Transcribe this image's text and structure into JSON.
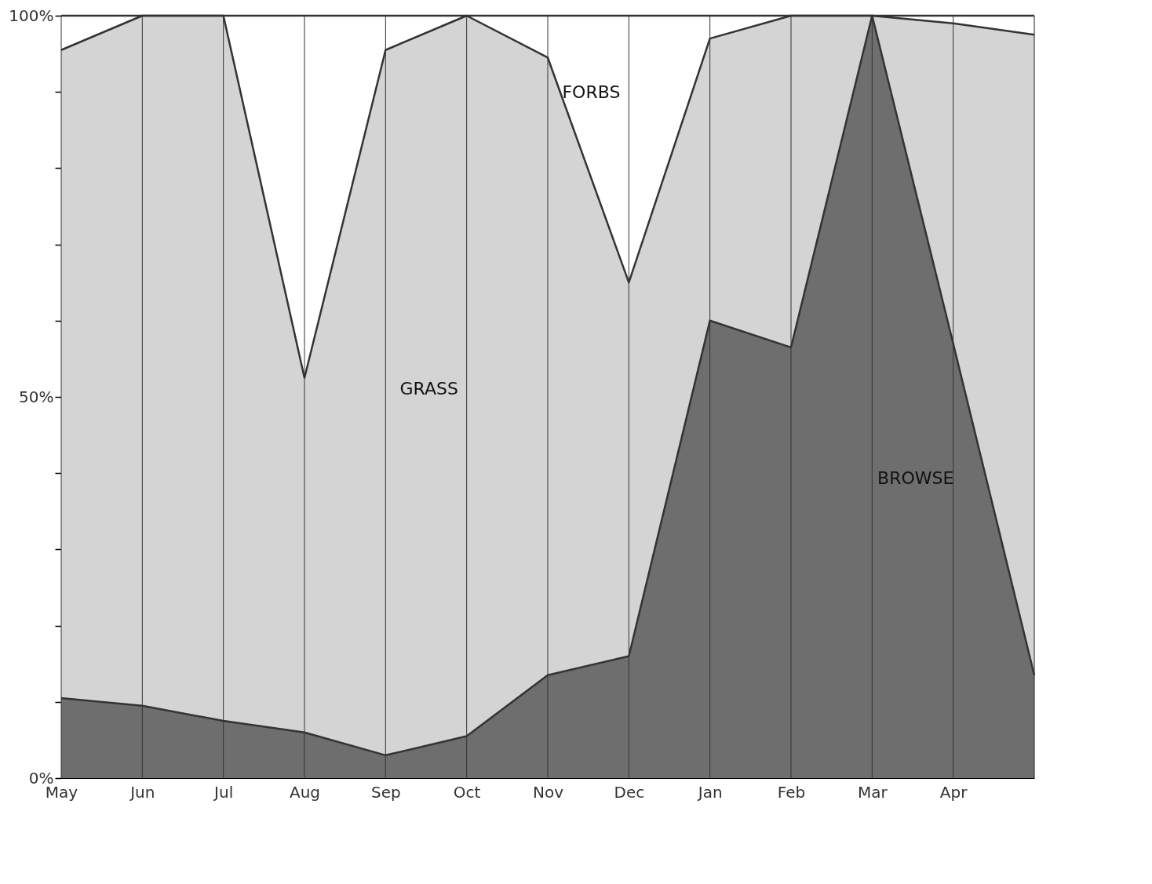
{
  "chart_data": {
    "type": "area",
    "stacked": true,
    "categories": [
      "May",
      "Jun",
      "Jul",
      "Aug",
      "Sep",
      "Oct",
      "Nov",
      "Dec",
      "Jan",
      "Feb",
      "Mar",
      "Apr",
      null
    ],
    "ylim": [
      0,
      100
    ],
    "yticks": [
      {
        "value": 0,
        "label": "0%"
      },
      {
        "value": 10,
        "label": null
      },
      {
        "value": 20,
        "label": null
      },
      {
        "value": 30,
        "label": null
      },
      {
        "value": 40,
        "label": null
      },
      {
        "value": 50,
        "label": "50%"
      },
      {
        "value": 60,
        "label": null
      },
      {
        "value": 70,
        "label": null
      },
      {
        "value": 80,
        "label": null
      },
      {
        "value": 90,
        "label": null
      },
      {
        "value": 100,
        "label": "100%"
      }
    ],
    "grid": "x",
    "legend": false,
    "series": [
      {
        "name": "BROWSE",
        "color": "#6e6e6e",
        "values": [
          10.5,
          9.5,
          7.5,
          6,
          3,
          5.5,
          13.5,
          16,
          60,
          56.5,
          100,
          57,
          13.5
        ]
      },
      {
        "name": "GRASS",
        "color": "#d4d4d4",
        "values": [
          85,
          90.5,
          92.5,
          46.5,
          92.5,
          94.5,
          81,
          49,
          37,
          43.5,
          0,
          42,
          84
        ]
      },
      {
        "name": "FORBS",
        "color": "#ffffff",
        "values": [
          4.5,
          0,
          0,
          47.5,
          4.5,
          0,
          5.5,
          35,
          3,
          0,
          0,
          1,
          2.5
        ]
      }
    ]
  }
}
